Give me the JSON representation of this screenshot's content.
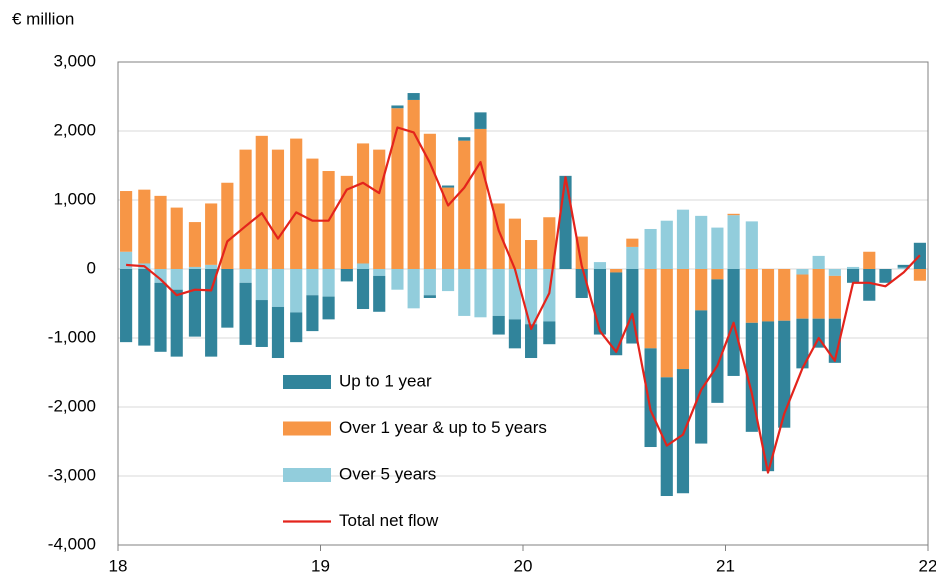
{
  "chart_data": {
    "type": "bar",
    "y_label": "€ million",
    "xlim": [
      18,
      22
    ],
    "xticks": [
      18,
      19,
      20,
      21,
      22
    ],
    "ylim": [
      -4000,
      3000
    ],
    "yticks": [
      {
        "value": -4000,
        "label": "-4,000"
      },
      {
        "value": -3000,
        "label": "-3,000"
      },
      {
        "value": -2000,
        "label": "-2,000"
      },
      {
        "value": -1000,
        "label": "-1,000"
      },
      0,
      {
        "value": 1000,
        "label": "1,000"
      },
      {
        "value": 2000,
        "label": "2,000"
      },
      {
        "value": 3000,
        "label": "3,000"
      }
    ],
    "grid": true,
    "legend": "lower-left",
    "x": [
      18.04,
      18.13,
      18.21,
      18.29,
      18.38,
      18.46,
      18.54,
      18.63,
      18.71,
      18.79,
      18.88,
      18.96,
      19.04,
      19.13,
      19.21,
      19.29,
      19.38,
      19.46,
      19.54,
      19.63,
      19.71,
      19.79,
      19.88,
      19.96,
      20.04,
      20.13,
      20.21,
      20.29,
      20.38,
      20.46,
      20.54,
      20.63,
      20.71,
      20.79,
      20.88,
      20.96,
      21.04,
      21.13,
      21.21,
      21.29,
      21.38,
      21.46,
      21.54,
      21.63,
      21.71,
      21.79,
      21.88,
      21.96
    ],
    "series": [
      {
        "name": "Up to 1 year",
        "type": "bar",
        "color": "#31849b",
        "values": [
          -1060,
          -1110,
          -1000,
          -970,
          -980,
          -1270,
          -850,
          -900,
          -680,
          -740,
          -430,
          -520,
          -330,
          -180,
          -580,
          -520,
          40,
          100,
          -40,
          30,
          50,
          240,
          -270,
          -420,
          -490,
          -330,
          1350,
          -420,
          -950,
          -1200,
          -1080,
          -1430,
          -1720,
          -1800,
          -1930,
          -1790,
          -1550,
          -1580,
          -2170,
          -1550,
          -720,
          -420,
          -640,
          -200,
          -460,
          -200,
          40,
          380
        ]
      },
      {
        "name": "Over 1 year & up to 5 years",
        "type": "bar",
        "color": "#f79646",
        "values": [
          880,
          1070,
          1060,
          890,
          650,
          890,
          1250,
          1730,
          1930,
          1730,
          1890,
          1600,
          1420,
          1350,
          1740,
          1730,
          2330,
          2450,
          1960,
          1180,
          1860,
          2030,
          950,
          730,
          420,
          750,
          0,
          470,
          0,
          -50,
          120,
          -1150,
          -1570,
          -1450,
          -600,
          -150,
          20,
          -780,
          -760,
          -750,
          -640,
          -720,
          -620,
          0,
          250,
          0,
          0,
          -170
        ]
      },
      {
        "name": "Over 5 years",
        "type": "bar",
        "color": "#92cddc",
        "values": [
          250,
          80,
          -200,
          -300,
          30,
          60,
          0,
          -200,
          -450,
          -550,
          -630,
          -380,
          -400,
          0,
          80,
          -100,
          -300,
          -570,
          -380,
          -320,
          -680,
          -700,
          -680,
          -730,
          -800,
          -760,
          0,
          0,
          100,
          0,
          320,
          580,
          700,
          860,
          770,
          600,
          780,
          690,
          0,
          0,
          -80,
          190,
          -100,
          30,
          0,
          0,
          20,
          0
        ]
      },
      {
        "name": "Total net flow",
        "type": "line",
        "color": "#e3241c",
        "values": [
          60,
          40,
          -150,
          -380,
          -300,
          -310,
          400,
          620,
          810,
          440,
          820,
          700,
          700,
          1150,
          1250,
          1100,
          2050,
          1980,
          1540,
          920,
          1180,
          1550,
          560,
          0,
          -870,
          -350,
          1330,
          50,
          -900,
          -1200,
          -650,
          -2050,
          -2560,
          -2400,
          -1750,
          -1400,
          -780,
          -1800,
          -2950,
          -2100,
          -1440,
          -1000,
          -1330,
          -200,
          -200,
          -250,
          -50,
          200
        ]
      }
    ]
  }
}
